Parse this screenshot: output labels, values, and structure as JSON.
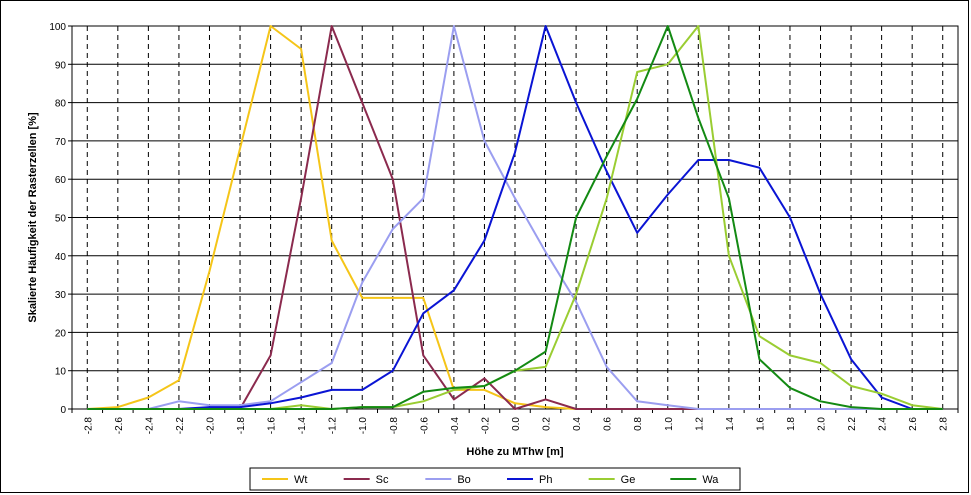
{
  "chart_data": {
    "type": "line",
    "title": "",
    "xlabel": "Höhe zu MThw [m]",
    "ylabel": "Skalierte Häufigkeit der Rasterzellen [%]",
    "ylim": [
      0,
      100
    ],
    "yticks": [
      "0",
      "10",
      "20",
      "30",
      "40",
      "50",
      "60",
      "70",
      "80",
      "90",
      "100"
    ],
    "x": [
      "-2.8",
      "-2.6",
      "-2.4",
      "-2.2",
      "-2.0",
      "-1.8",
      "-1.6",
      "-1.4",
      "-1.2",
      "-1.0",
      "-0.8",
      "-0.6",
      "-0.4",
      "-0.2",
      "0.0",
      "0.2",
      "0.4",
      "0.6",
      "0.8",
      "1.0",
      "1.2",
      "1.4",
      "1.6",
      "1.8",
      "2.0",
      "2.2",
      "2.4",
      "2.6",
      "2.8"
    ],
    "grid": "vertical-dashed, horizontal-solid",
    "legend_position": "bottom",
    "series": [
      {
        "name": "Wt",
        "color": "#f5c518",
        "values": [
          0,
          0.5,
          3,
          7.5,
          36,
          68,
          100,
          94,
          44,
          29,
          29,
          29,
          5,
          5,
          1.5,
          0.5,
          0,
          0,
          0,
          0,
          0,
          0,
          0,
          0,
          0,
          0,
          0,
          0,
          0
        ]
      },
      {
        "name": "Sc",
        "color": "#8b2a4e",
        "values": [
          0,
          0,
          0,
          0,
          0,
          0,
          14,
          55,
          100,
          80,
          60,
          14,
          2.5,
          8,
          0,
          2.5,
          0,
          0,
          0,
          0,
          0,
          0,
          0,
          0,
          0,
          0,
          0,
          0,
          0
        ]
      },
      {
        "name": "Bo",
        "color": "#9b9ef0",
        "values": [
          0,
          0,
          0,
          2,
          1,
          1,
          2,
          7,
          12,
          33,
          47,
          55,
          100,
          70,
          55,
          41,
          28,
          11,
          2,
          1,
          0,
          0,
          0,
          0,
          0,
          0,
          0,
          0,
          0
        ]
      },
      {
        "name": "Ph",
        "color": "#0a14d4",
        "values": [
          0,
          0,
          0,
          0,
          0.5,
          0.5,
          1.5,
          3,
          5,
          5,
          10,
          25,
          31,
          44,
          67,
          100,
          80,
          62,
          46,
          56,
          65,
          65,
          63,
          50,
          30,
          13,
          3,
          0,
          0
        ]
      },
      {
        "name": "Ge",
        "color": "#9acd32",
        "values": [
          0,
          0,
          0,
          0,
          0,
          0,
          0,
          1,
          0,
          0.5,
          0.5,
          2,
          5,
          6,
          10,
          11,
          30,
          55,
          88,
          90,
          100,
          40,
          19,
          14,
          12,
          6,
          4,
          1,
          0
        ]
      },
      {
        "name": "Wa",
        "color": "#138a13",
        "values": [
          0,
          0,
          0,
          0,
          0,
          0,
          0,
          0,
          0,
          0.5,
          0.5,
          4.5,
          5.5,
          6,
          10,
          15,
          50,
          66,
          81,
          100,
          76,
          55,
          13,
          5.5,
          2,
          0.5,
          0,
          0,
          0
        ]
      }
    ]
  }
}
